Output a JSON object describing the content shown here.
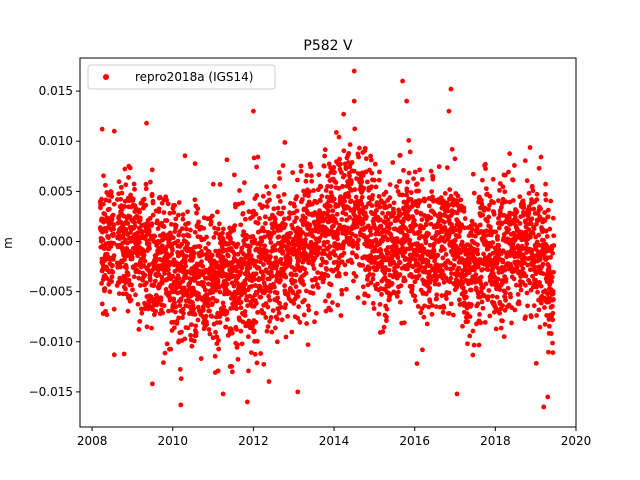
{
  "chart_data": {
    "type": "scatter",
    "title": "P582 V",
    "xlabel": "",
    "ylabel": "m",
    "xlim": [
      2007.7,
      2020.0
    ],
    "ylim": [
      -0.0185,
      0.0183
    ],
    "xticks": [
      2008,
      2010,
      2012,
      2014,
      2016,
      2018,
      2020
    ],
    "xtick_labels": [
      "2008",
      "2010",
      "2012",
      "2014",
      "2016",
      "2018",
      "2020"
    ],
    "yticks": [
      -0.015,
      -0.01,
      -0.005,
      0.0,
      0.005,
      0.01,
      0.015
    ],
    "ytick_labels": [
      "−0.015",
      "−0.010",
      "−0.005",
      "0.000",
      "0.005",
      "0.010",
      "0.015"
    ],
    "grid": false,
    "legend": "top-left",
    "series": [
      {
        "name": "repro2018a (IGS14)",
        "color": "#ff0000",
        "marker": "circle",
        "x_start": 2008.2,
        "x_end": 2019.45,
        "trend_points": [
          [
            2008.2,
            0.0
          ],
          [
            2009.0,
            -0.0005
          ],
          [
            2010.0,
            -0.003
          ],
          [
            2010.8,
            -0.004
          ],
          [
            2011.5,
            -0.004
          ],
          [
            2012.3,
            -0.002
          ],
          [
            2013.0,
            -0.001
          ],
          [
            2014.0,
            0.002
          ],
          [
            2014.6,
            0.0025
          ],
          [
            2015.2,
            -0.001
          ],
          [
            2015.8,
            0.0015
          ],
          [
            2016.3,
            -0.0015
          ],
          [
            2016.9,
            0.001
          ],
          [
            2017.3,
            -0.0025
          ],
          [
            2018.0,
            -0.001
          ],
          [
            2018.8,
            0.0
          ],
          [
            2019.45,
            -0.004
          ]
        ],
        "noise_sd": 0.0035,
        "n_points": 3800,
        "outliers": [
          [
            2008.25,
            0.0112
          ],
          [
            2008.55,
            0.011
          ],
          [
            2008.55,
            -0.0113
          ],
          [
            2009.35,
            0.0118
          ],
          [
            2010.2,
            -0.0163
          ],
          [
            2011.25,
            -0.0152
          ],
          [
            2011.85,
            -0.016
          ],
          [
            2012.0,
            0.013
          ],
          [
            2013.1,
            -0.015
          ],
          [
            2014.5,
            0.017
          ],
          [
            2015.7,
            0.016
          ],
          [
            2015.8,
            0.014
          ],
          [
            2016.9,
            0.0152
          ],
          [
            2017.05,
            -0.0152
          ],
          [
            2019.2,
            -0.0165
          ],
          [
            2019.3,
            -0.0155
          ],
          [
            2014.5,
            0.014
          ],
          [
            2016.85,
            0.013
          ]
        ]
      }
    ]
  }
}
